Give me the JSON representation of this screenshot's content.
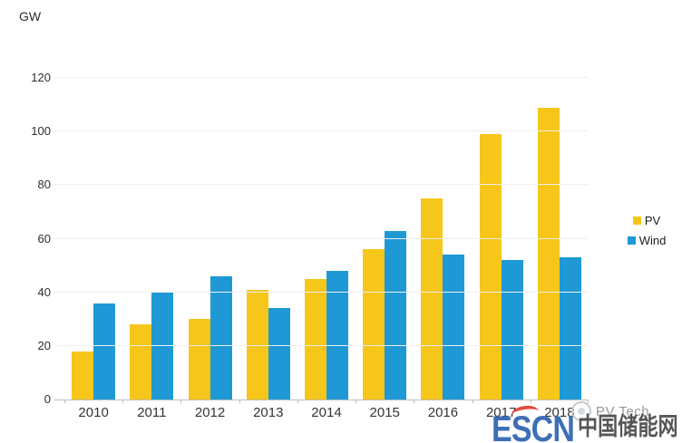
{
  "chart_data": {
    "type": "bar",
    "title": "",
    "ylabel": "GW",
    "categories": [
      "2010",
      "2011",
      "2012",
      "2013",
      "2014",
      "2015",
      "2016",
      "2017",
      "2018"
    ],
    "series": [
      {
        "name": "PV",
        "color": "#F6C61B",
        "values": [
          18,
          28,
          30,
          41,
          45,
          56,
          75,
          99,
          109
        ]
      },
      {
        "name": "Wind",
        "color": "#1E99D5",
        "values": [
          36,
          40,
          46,
          34,
          48,
          63,
          54,
          52,
          53
        ]
      }
    ],
    "ylim": [
      0,
      120
    ],
    "yticks": [
      0,
      20,
      40,
      60,
      80,
      100,
      120
    ],
    "grid": true,
    "legend_position": "right",
    "legend": [
      "PV",
      "Wind"
    ]
  },
  "watermark": {
    "escn_latin": "ESCN",
    "escn_latin_color": "#3E6FB5",
    "escn_swoosh_color": "#E4493F",
    "escn_chinese": "中国储能网",
    "escn_chinese_color": "#4C4C4C",
    "pvtech_label": "PV Tech",
    "pvtech_color": "#93989D"
  }
}
